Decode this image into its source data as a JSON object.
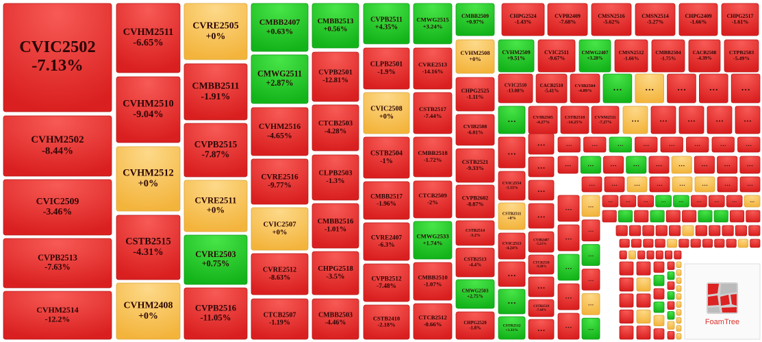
{
  "tiles": [
    {
      "label": "CVIC2502",
      "change": "-7.13%",
      "tone": "r"
    },
    {
      "label": "CVHM2502",
      "change": "-8.44%",
      "tone": "r"
    },
    {
      "label": "CVIC2509",
      "change": "-3.46%",
      "tone": "r"
    },
    {
      "label": "CVPB2513",
      "change": "-7.63%",
      "tone": "r"
    },
    {
      "label": "CVHM2514",
      "change": "-12.2%",
      "tone": "r"
    },
    {
      "label": "CVHM2511",
      "change": "-6.65%",
      "tone": "r"
    },
    {
      "label": "CVHM2510",
      "change": "-9.04%",
      "tone": "r"
    },
    {
      "label": "CVHM2512",
      "change": "+0%",
      "tone": "y"
    },
    {
      "label": "CSTB2515",
      "change": "-4.31%",
      "tone": "r"
    },
    {
      "label": "CVHM2408",
      "change": "+0%",
      "tone": "y"
    },
    {
      "label": "CVRE2505",
      "change": "+0%",
      "tone": "y"
    },
    {
      "label": "CMBB2511",
      "change": "-1.91%",
      "tone": "r"
    },
    {
      "label": "CVPB2515",
      "change": "-7.87%",
      "tone": "r"
    },
    {
      "label": "CVRE2511",
      "change": "+0%",
      "tone": "y"
    },
    {
      "label": "CVRE2503",
      "change": "+0.75%",
      "tone": "g"
    },
    {
      "label": "CVPB2516",
      "change": "-11.05%",
      "tone": "r"
    },
    {
      "label": "CMBB2407",
      "change": "+0.63%",
      "tone": "g"
    },
    {
      "label": "CMWG2511",
      "change": "+2.87%",
      "tone": "g"
    },
    {
      "label": "CVHM2516",
      "change": "-4.65%",
      "tone": "r"
    },
    {
      "label": "CVRE2516",
      "change": "-9.77%",
      "tone": "r"
    },
    {
      "label": "CVIC2507",
      "change": "+0%",
      "tone": "y"
    },
    {
      "label": "CVRE2512",
      "change": "-8.63%",
      "tone": "r"
    },
    {
      "label": "CTCB2507",
      "change": "-1.19%",
      "tone": "r"
    },
    {
      "label": "CMBB2513",
      "change": "+0.56%",
      "tone": "g"
    },
    {
      "label": "CVPB2501",
      "change": "-12.81%",
      "tone": "r"
    },
    {
      "label": "CTCB2503",
      "change": "-4.28%",
      "tone": "r"
    },
    {
      "label": "CLPB2503",
      "change": "-1.3%",
      "tone": "r"
    },
    {
      "label": "CMBB2516",
      "change": "-1.01%",
      "tone": "r"
    },
    {
      "label": "CHPG2518",
      "change": "-3.5%",
      "tone": "r"
    },
    {
      "label": "CMBB2503",
      "change": "-4.46%",
      "tone": "r"
    },
    {
      "label": "CVPB2511",
      "change": "+4.35%",
      "tone": "g"
    },
    {
      "label": "CLPB2501",
      "change": "-1.9%",
      "tone": "r"
    },
    {
      "label": "CVIC2508",
      "change": "+0%",
      "tone": "y"
    },
    {
      "label": "CSTB2504",
      "change": "-1%",
      "tone": "r"
    },
    {
      "label": "CMBB2517",
      "change": "-1.96%",
      "tone": "r"
    },
    {
      "label": "CVRE2407",
      "change": "-6.3%",
      "tone": "r"
    },
    {
      "label": "CVPB2512",
      "change": "-7.48%",
      "tone": "r"
    },
    {
      "label": "CSTB2410",
      "change": "-2.18%",
      "tone": "r"
    },
    {
      "label": "CMWG2515",
      "change": "+3.24%",
      "tone": "g"
    },
    {
      "label": "CVRE2513",
      "change": "-14.16%",
      "tone": "r"
    },
    {
      "label": "CSTB2517",
      "change": "-7.44%",
      "tone": "r"
    },
    {
      "label": "CMBB2518",
      "change": "-1.72%",
      "tone": "r"
    },
    {
      "label": "CTCB2509",
      "change": "-2%",
      "tone": "r"
    },
    {
      "label": "CMWG2533",
      "change": "+1.74%",
      "tone": "g"
    },
    {
      "label": "CMBB2510",
      "change": "-1.07%",
      "tone": "r"
    },
    {
      "label": "CTCB2512",
      "change": "-0.66%",
      "tone": "r"
    },
    {
      "label": "CMBB2509",
      "change": "+0.97%",
      "tone": "g"
    },
    {
      "label": "CVHM2508",
      "change": "+0%",
      "tone": "y"
    },
    {
      "label": "CHPG2525",
      "change": "-1.11%",
      "tone": "r"
    },
    {
      "label": "CVIB2508",
      "change": "-6.01%",
      "tone": "r"
    },
    {
      "label": "CSTB2521",
      "change": "-9.33%",
      "tone": "r"
    },
    {
      "label": "CVPB2602",
      "change": "-8.87%",
      "tone": "r"
    },
    {
      "label": "CSTB2514",
      "change": "-3.2%",
      "tone": "r"
    },
    {
      "label": "CSTB2513",
      "change": "-4.4%",
      "tone": "r"
    },
    {
      "label": "CMWG2503",
      "change": "+2.75%",
      "tone": "g"
    },
    {
      "label": "CHPG2520",
      "change": "-1.8%",
      "tone": "r"
    },
    {
      "label": "CHPG2524",
      "change": "-1.43%",
      "tone": "r"
    },
    {
      "label": "CVPB2409",
      "change": "-7.68%",
      "tone": "r"
    },
    {
      "label": "CMSN2516",
      "change": "-5.62%",
      "tone": "r"
    },
    {
      "label": "CMSN2514",
      "change": "-5.27%",
      "tone": "r"
    },
    {
      "label": "CHPG2409",
      "change": "-1.66%",
      "tone": "r"
    },
    {
      "label": "CHPG2517",
      "change": "-1.61%",
      "tone": "r"
    },
    {
      "label": "CVHM2509",
      "change": "+9.51%",
      "tone": "g"
    },
    {
      "label": "CVIC2511",
      "change": "-9.67%",
      "tone": "r"
    },
    {
      "label": "CMWG2407",
      "change": "+3.28%",
      "tone": "g"
    },
    {
      "label": "CMSN2512",
      "change": "-1.66%",
      "tone": "r"
    },
    {
      "label": "CMBB2504",
      "change": "-1.75%",
      "tone": "r"
    },
    {
      "label": "CACB2508",
      "change": "-4.39%",
      "tone": "r"
    },
    {
      "label": "CTPB2503",
      "change": "-5.49%",
      "tone": "r"
    },
    {
      "label": "CVIC2510",
      "change": "-13.08%",
      "tone": "r"
    },
    {
      "label": "CACB2510",
      "change": "-5.41%",
      "tone": "r"
    },
    {
      "label": "CVIB2504",
      "change": "-4.89%",
      "tone": "r"
    },
    {
      "label": "CVIB2505",
      "change": "-4.27%",
      "tone": "r"
    },
    {
      "label": "CSTB2510",
      "change": "-14.25%",
      "tone": "r"
    },
    {
      "label": "CVNM2511",
      "change": "-7.27%",
      "tone": "r"
    },
    {
      "label": "CVIC2554",
      "change": "-3.33%",
      "tone": "r"
    },
    {
      "label": "CSTB2511",
      "change": "+0%",
      "tone": "y"
    },
    {
      "label": "CVIC2513",
      "change": "-4.24%",
      "tone": "r"
    },
    {
      "label": "CSTB2512",
      "change": "+3.33%",
      "tone": "g"
    },
    {
      "label": "CVIB2407",
      "change": "-5.21%",
      "tone": "r"
    },
    {
      "label": "CTCB2510",
      "change": "-9.28%",
      "tone": "r"
    },
    {
      "label": "CSTB2519",
      "change": "-7.44%",
      "tone": "r"
    }
  ],
  "more_label": "…",
  "more_tones": "gyrrrgyrrrrrrgrrrrrrrrgrrrrrrgrgryrrrrryryyrrrrgrryrgrygrrrggrrry",
  "tiny_tones": "rgrgrrggrrrrrrryrrrrrrrrryrrrrryrryrrrrrrrrrrryryrrgrgyrrgrgrgyryyyyyyyyyy",
  "logo": "FoamTree"
}
